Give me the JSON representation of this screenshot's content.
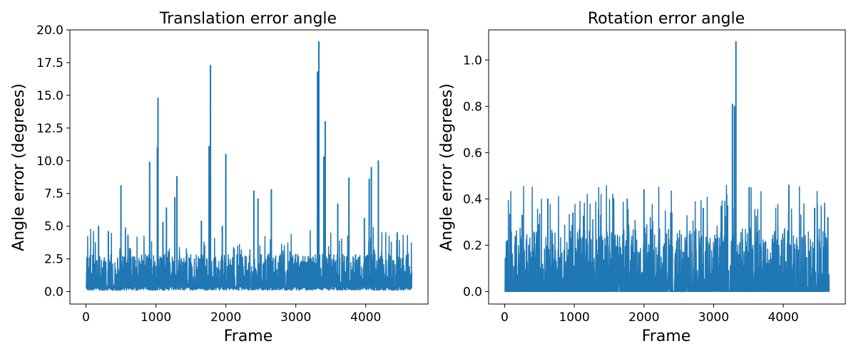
{
  "chart_data": [
    {
      "type": "line",
      "title": "Translation error angle",
      "xlabel": "Frame",
      "ylabel": "Angle error (degrees)",
      "xlim": [
        -230,
        4890
      ],
      "ylim": [
        -0.95,
        20.0
      ],
      "xticks": [
        0,
        1000,
        2000,
        3000,
        4000
      ],
      "yticks": [
        0.0,
        2.5,
        5.0,
        7.5,
        10.0,
        12.5,
        15.0,
        17.5,
        20.0
      ],
      "xtick_labels": [
        "0",
        "1000",
        "2000",
        "3000",
        "4000"
      ],
      "ytick_labels": [
        "0.0",
        "2.5",
        "5.0",
        "7.5",
        "10.0",
        "12.5",
        "15.0",
        "17.5",
        "20.0"
      ],
      "color": "#1f77b4",
      "n_frames": 4660,
      "x_max": 4659,
      "baseline": {
        "min": 0.1,
        "typical_low": 0.3,
        "typical_high": 2.9
      },
      "spikes": [
        {
          "x": 180,
          "y": 5.0
        },
        {
          "x": 320,
          "y": 4.6
        },
        {
          "x": 500,
          "y": 8.1
        },
        {
          "x": 600,
          "y": 4.3
        },
        {
          "x": 910,
          "y": 9.9
        },
        {
          "x": 1020,
          "y": 11.0
        },
        {
          "x": 1030,
          "y": 14.8
        },
        {
          "x": 1100,
          "y": 5.3
        },
        {
          "x": 1150,
          "y": 6.4
        },
        {
          "x": 1270,
          "y": 7.2
        },
        {
          "x": 1300,
          "y": 8.8
        },
        {
          "x": 1650,
          "y": 5.4
        },
        {
          "x": 1760,
          "y": 11.1
        },
        {
          "x": 1780,
          "y": 17.3
        },
        {
          "x": 1950,
          "y": 5.0
        },
        {
          "x": 2000,
          "y": 10.5
        },
        {
          "x": 2400,
          "y": 7.7
        },
        {
          "x": 2460,
          "y": 7.1
        },
        {
          "x": 2650,
          "y": 7.8
        },
        {
          "x": 3310,
          "y": 16.8
        },
        {
          "x": 3330,
          "y": 19.1
        },
        {
          "x": 3400,
          "y": 10.3
        },
        {
          "x": 3420,
          "y": 13.0
        },
        {
          "x": 3600,
          "y": 6.7
        },
        {
          "x": 3760,
          "y": 8.7
        },
        {
          "x": 3980,
          "y": 5.6
        },
        {
          "x": 4050,
          "y": 8.6
        },
        {
          "x": 4080,
          "y": 9.5
        },
        {
          "x": 4180,
          "y": 10.0
        },
        {
          "x": 4450,
          "y": 4.5
        }
      ]
    },
    {
      "type": "line",
      "title": "Rotation error angle",
      "xlabel": "Frame",
      "ylabel": "Angle error (degrees)",
      "xlim": [
        -230,
        4890
      ],
      "ylim": [
        -0.054,
        1.13
      ],
      "xticks": [
        0,
        1000,
        2000,
        3000,
        4000
      ],
      "yticks": [
        0.0,
        0.2,
        0.4,
        0.6,
        0.8,
        1.0
      ],
      "xtick_labels": [
        "0",
        "1000",
        "2000",
        "3000",
        "4000"
      ],
      "ytick_labels": [
        "0.0",
        "0.2",
        "0.4",
        "0.6",
        "0.8",
        "1.0"
      ],
      "color": "#1f77b4",
      "n_frames": 4660,
      "x_max": 4659,
      "baseline": {
        "min": 0.0,
        "typical_low": 0.0,
        "typical_high": 0.27
      },
      "spikes": [
        {
          "x": 250,
          "y": 0.33
        },
        {
          "x": 620,
          "y": 0.4
        },
        {
          "x": 980,
          "y": 0.34
        },
        {
          "x": 1380,
          "y": 0.33
        },
        {
          "x": 1760,
          "y": 0.4
        },
        {
          "x": 2000,
          "y": 0.44
        },
        {
          "x": 2400,
          "y": 0.34
        },
        {
          "x": 2850,
          "y": 0.36
        },
        {
          "x": 3200,
          "y": 0.37
        },
        {
          "x": 3270,
          "y": 0.81
        },
        {
          "x": 3300,
          "y": 0.8
        },
        {
          "x": 3320,
          "y": 1.08
        },
        {
          "x": 3510,
          "y": 0.45
        },
        {
          "x": 4080,
          "y": 0.46
        },
        {
          "x": 4450,
          "y": 0.36
        },
        {
          "x": 4640,
          "y": 0.32
        }
      ]
    }
  ]
}
